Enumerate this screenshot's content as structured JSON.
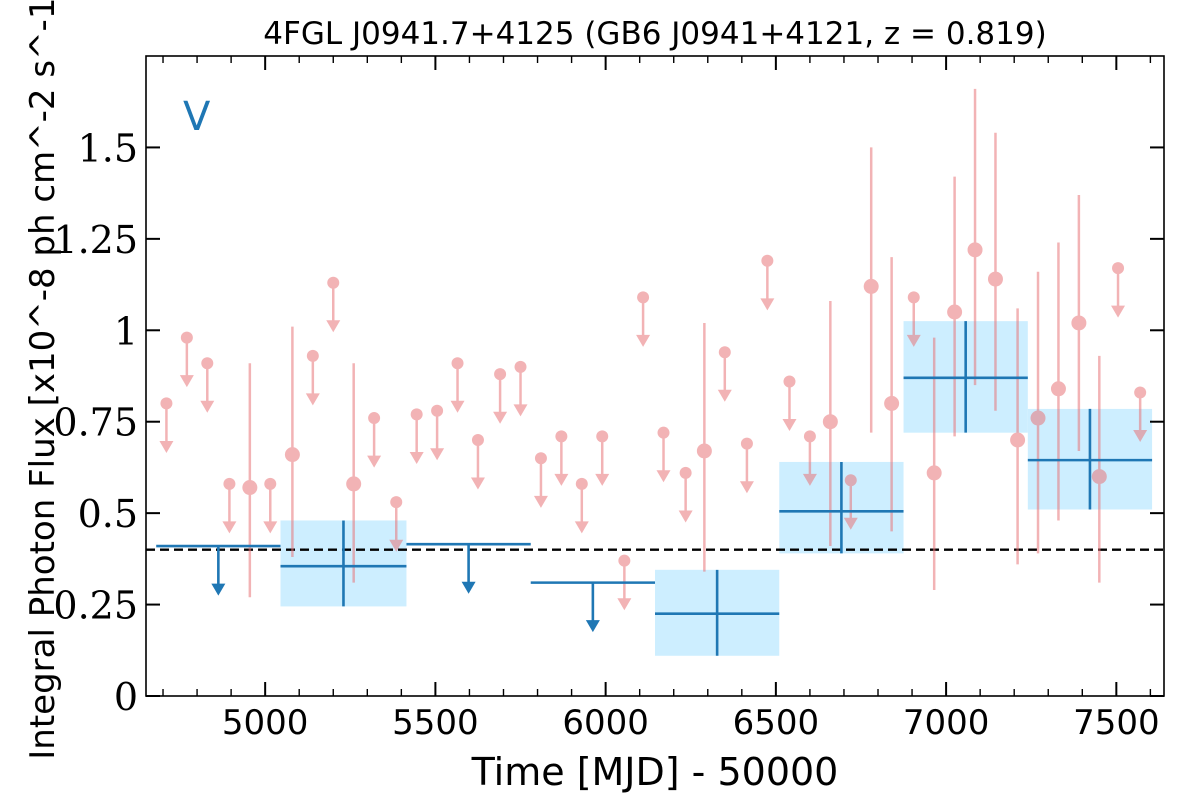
{
  "chart_data": {
    "type": "scatter",
    "title": "4FGL J0941.7+4125 (GB6 J0941+4121, z = 0.819)",
    "xlabel": "Time [MJD] - 50000",
    "ylabel": "Integral Photon Flux [x10^-8 ph cm^-2 s^-1]",
    "panel_label": "V",
    "xlim": [
      4650,
      7640
    ],
    "ylim": [
      0,
      1.75
    ],
    "xticks": [
      {
        "value": 5000,
        "label": "5000"
      },
      {
        "value": 5500,
        "label": "5500"
      },
      {
        "value": 6000,
        "label": "6000"
      },
      {
        "value": 6500,
        "label": "6500"
      },
      {
        "value": 7000,
        "label": "7000"
      },
      {
        "value": 7500,
        "label": "7500"
      }
    ],
    "yticks": [
      {
        "value": 0,
        "label": "0"
      },
      {
        "value": 0.25,
        "label": "0.25"
      },
      {
        "value": 0.5,
        "label": "0.5"
      },
      {
        "value": 0.75,
        "label": "0.75"
      },
      {
        "value": 1,
        "label": "1"
      },
      {
        "value": 1.25,
        "label": "1.25"
      },
      {
        "value": 1.5,
        "label": "1.5"
      }
    ],
    "reference_line": {
      "y": 0.4,
      "style": "dashed",
      "color": "#000000"
    },
    "colors": {
      "fine_bins": "#e8767a",
      "coarse_bins": "#1f77b4",
      "coarse_band": "#cdeeff"
    },
    "grid": false,
    "fine_bins_upper_limits": [
      {
        "x": 4710,
        "y": 0.8
      },
      {
        "x": 4770,
        "y": 0.98
      },
      {
        "x": 4830,
        "y": 0.91
      },
      {
        "x": 4895,
        "y": 0.58
      },
      {
        "x": 5015,
        "y": 0.58
      },
      {
        "x": 5140,
        "y": 0.93
      },
      {
        "x": 5200,
        "y": 1.13
      },
      {
        "x": 5320,
        "y": 0.76
      },
      {
        "x": 5385,
        "y": 0.53
      },
      {
        "x": 5445,
        "y": 0.77
      },
      {
        "x": 5505,
        "y": 0.78
      },
      {
        "x": 5565,
        "y": 0.91
      },
      {
        "x": 5625,
        "y": 0.7
      },
      {
        "x": 5690,
        "y": 0.88
      },
      {
        "x": 5750,
        "y": 0.9
      },
      {
        "x": 5810,
        "y": 0.65
      },
      {
        "x": 5870,
        "y": 0.71
      },
      {
        "x": 5930,
        "y": 0.58
      },
      {
        "x": 5990,
        "y": 0.71
      },
      {
        "x": 6055,
        "y": 0.37
      },
      {
        "x": 6110,
        "y": 1.09
      },
      {
        "x": 6170,
        "y": 0.72
      },
      {
        "x": 6235,
        "y": 0.61
      },
      {
        "x": 6350,
        "y": 0.94
      },
      {
        "x": 6415,
        "y": 0.69
      },
      {
        "x": 6475,
        "y": 1.19
      },
      {
        "x": 6540,
        "y": 0.86
      },
      {
        "x": 6600,
        "y": 0.71
      },
      {
        "x": 6720,
        "y": 0.59
      },
      {
        "x": 6905,
        "y": 1.09
      },
      {
        "x": 7505,
        "y": 1.17
      },
      {
        "x": 7570,
        "y": 0.83
      }
    ],
    "fine_bins_detections": [
      {
        "x": 4955,
        "y": 0.57,
        "ylo": 0.27,
        "yhi": 0.91
      },
      {
        "x": 5080,
        "y": 0.66,
        "ylo": 0.38,
        "yhi": 1.01
      },
      {
        "x": 5260,
        "y": 0.58,
        "ylo": 0.31,
        "yhi": 0.91
      },
      {
        "x": 6290,
        "y": 0.67,
        "ylo": 0.34,
        "yhi": 1.02
      },
      {
        "x": 6660,
        "y": 0.75,
        "ylo": 0.41,
        "yhi": 1.08
      },
      {
        "x": 6780,
        "y": 1.12,
        "ylo": 0.72,
        "yhi": 1.5
      },
      {
        "x": 6840,
        "y": 0.8,
        "ylo": 0.45,
        "yhi": 1.2
      },
      {
        "x": 6965,
        "y": 0.61,
        "ylo": 0.29,
        "yhi": 0.98
      },
      {
        "x": 7025,
        "y": 1.05,
        "ylo": 0.71,
        "yhi": 1.42
      },
      {
        "x": 7085,
        "y": 1.22,
        "ylo": 0.85,
        "yhi": 1.66
      },
      {
        "x": 7145,
        "y": 1.14,
        "ylo": 0.78,
        "yhi": 1.54
      },
      {
        "x": 7210,
        "y": 0.7,
        "ylo": 0.36,
        "yhi": 1.06
      },
      {
        "x": 7270,
        "y": 0.76,
        "ylo": 0.39,
        "yhi": 1.16
      },
      {
        "x": 7330,
        "y": 0.84,
        "ylo": 0.48,
        "yhi": 1.24
      },
      {
        "x": 7390,
        "y": 1.02,
        "ylo": 0.67,
        "yhi": 1.37
      },
      {
        "x": 7450,
        "y": 0.6,
        "ylo": 0.31,
        "yhi": 0.93
      }
    ],
    "coarse_bins_upper_limits": [
      {
        "x0": 4680,
        "x1": 5045,
        "y": 0.41
      },
      {
        "x0": 5415,
        "x1": 5780,
        "y": 0.415
      },
      {
        "x0": 5780,
        "x1": 6145,
        "y": 0.31
      }
    ],
    "coarse_bins_detections": [
      {
        "x0": 5045,
        "x1": 5415,
        "y": 0.355,
        "ylo": 0.245,
        "yhi": 0.48
      },
      {
        "x0": 6145,
        "x1": 6510,
        "y": 0.225,
        "ylo": 0.11,
        "yhi": 0.345
      },
      {
        "x0": 6510,
        "x1": 6875,
        "y": 0.505,
        "ylo": 0.39,
        "yhi": 0.64
      },
      {
        "x0": 6875,
        "x1": 7240,
        "y": 0.87,
        "ylo": 0.72,
        "yhi": 1.025
      },
      {
        "x0": 7240,
        "x1": 7605,
        "y": 0.645,
        "ylo": 0.51,
        "yhi": 0.785
      }
    ]
  }
}
